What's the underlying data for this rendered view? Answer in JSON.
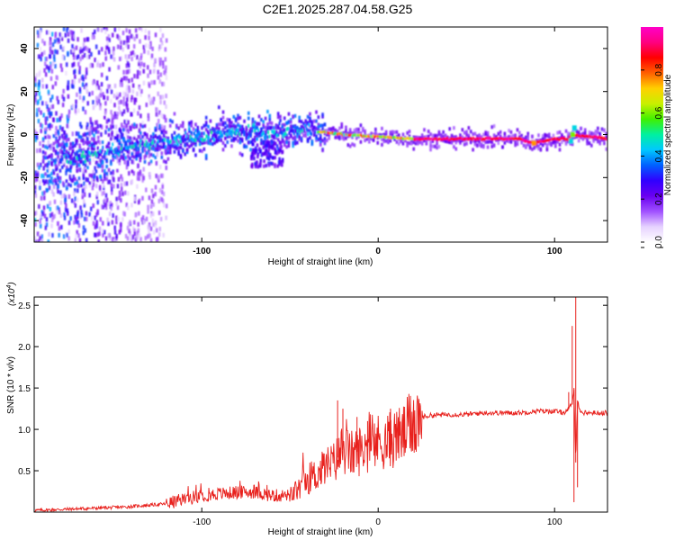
{
  "title": "C2E1.2025.287.04.58.G25",
  "chart_data": [
    {
      "type": "heatmap",
      "name": "spectrogram",
      "xlabel": "Height of straight line (km)",
      "ylabel": "Frequency (Hz)",
      "xlim": [
        -195,
        130
      ],
      "ylim": [
        -50,
        50
      ],
      "xticks": [
        -100,
        0,
        100
      ],
      "xtick_labels": [
        "-100",
        "0",
        "100"
      ],
      "yticks": [
        -40,
        -20,
        0,
        20,
        40
      ],
      "ytick_labels": [
        "-40",
        "-20",
        "0",
        "20",
        "40"
      ],
      "colorbar": {
        "label": "Normalized spectral amplitude",
        "range": [
          0,
          1
        ],
        "ticks": [
          0.0,
          0.2,
          0.4,
          0.6,
          0.8
        ],
        "tick_labels": [
          "0.0",
          "0.2",
          "0.4",
          "0.6",
          "0.8"
        ],
        "colors": [
          "#ffffff",
          "#e6d2ff",
          "#a050ff",
          "#6a00f0",
          "#3000ff",
          "#0060ff",
          "#00c8ff",
          "#00f0a0",
          "#40f000",
          "#c8f000",
          "#ffd000",
          "#ff6000",
          "#ff0000",
          "#ff0080",
          "#ff00c8"
        ]
      },
      "ridge": {
        "description_points": [
          [
            -180,
            -12
          ],
          [
            -150,
            -7
          ],
          [
            -120,
            -3
          ],
          [
            -100,
            -1
          ],
          [
            -80,
            1
          ],
          [
            -60,
            1
          ],
          [
            -40,
            2
          ],
          [
            -30,
            1
          ],
          [
            -20,
            0
          ],
          [
            0,
            -1
          ],
          [
            20,
            -2
          ],
          [
            50,
            -2
          ],
          [
            80,
            -2
          ],
          [
            88,
            -4
          ],
          [
            100,
            -2
          ],
          [
            108,
            -2
          ],
          [
            110,
            0
          ],
          [
            130,
            -2
          ]
        ],
        "strong_segment": [
          [
            -40,
            1
          ],
          [
            130,
            -2
          ]
        ]
      }
    },
    {
      "type": "line",
      "name": "snr",
      "xlabel": "Height of straight line (km)",
      "ylabel": "SNR (10 * v/v)",
      "multiplier_label": "(x10",
      "multiplier_exponent": "4",
      "xlim": [
        -195,
        130
      ],
      "ylim": [
        0,
        2.6
      ],
      "xticks": [
        -100,
        0,
        100
      ],
      "xtick_labels": [
        "-100",
        "0",
        "100"
      ],
      "yticks": [
        0.5,
        1.0,
        1.5,
        2.0,
        2.5
      ],
      "ytick_labels": [
        "0.5",
        "1.0",
        "1.5",
        "2.0",
        "2.5"
      ],
      "color": "#e8201c",
      "series": [
        {
          "name": "SNR",
          "x": [
            -195,
            -170,
            -145,
            -120,
            -105,
            -100,
            -90,
            -80,
            -70,
            -60,
            -50,
            -45,
            -40,
            -35,
            -30,
            -25,
            -20,
            -15,
            -10,
            -5,
            0,
            5,
            10,
            15,
            20,
            25,
            30,
            40,
            50,
            60,
            70,
            80,
            90,
            100,
            105,
            108,
            110,
            111,
            112,
            113,
            115,
            120,
            130
          ],
          "values": [
            0.02,
            0.04,
            0.06,
            0.1,
            0.18,
            0.2,
            0.22,
            0.24,
            0.24,
            0.2,
            0.2,
            0.28,
            0.4,
            0.45,
            0.55,
            0.6,
            0.75,
            0.7,
            0.75,
            0.8,
            0.85,
            0.85,
            0.9,
            0.95,
            1.1,
            1.15,
            1.17,
            1.18,
            1.18,
            1.2,
            1.2,
            1.2,
            1.22,
            1.22,
            1.2,
            1.25,
            1.3,
            1.5,
            0.6,
            1.35,
            1.2,
            1.2,
            1.2
          ]
        }
      ],
      "spikes": [
        {
          "x": -23,
          "value": 1.35
        },
        {
          "x": -20,
          "value": 1.25
        },
        {
          "x": -12,
          "value": 1.15
        },
        {
          "x": -6,
          "value": 1.1
        },
        {
          "x": 7,
          "value": 1.25
        },
        {
          "x": 108,
          "value": 1.45
        },
        {
          "x": 110,
          "value": 2.25
        },
        {
          "x": 111,
          "value": 0.12
        },
        {
          "x": 112,
          "value": 2.6
        },
        {
          "x": 113,
          "value": 0.3
        }
      ]
    }
  ]
}
